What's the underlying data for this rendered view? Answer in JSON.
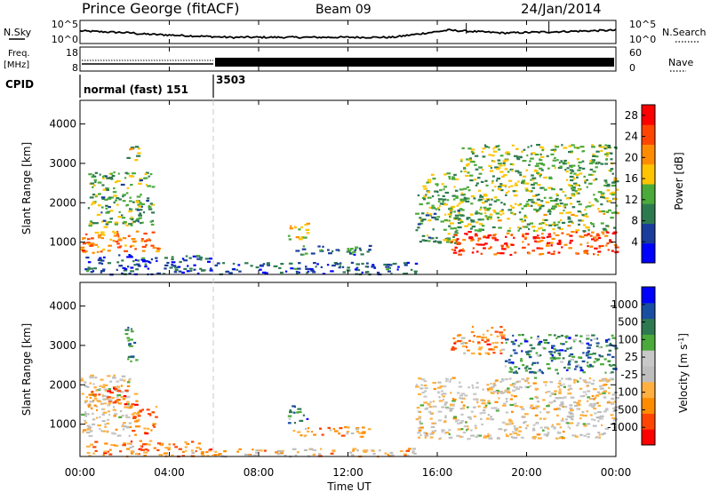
{
  "header": {
    "station": "Prince George (fitACF)",
    "beam": "Beam 09",
    "date": "24/Jan/2014"
  },
  "noise_panel": {
    "left_label": "N.Sky",
    "right_label": "N.Search",
    "left_ticks": [
      "10^5",
      "10^0"
    ],
    "right_ticks": [
      "10^5",
      "10^0"
    ]
  },
  "freq_panel": {
    "left_label_line1": "Freq.",
    "left_label_line2": "[MHz]",
    "left_ticks": [
      "18",
      "8"
    ],
    "right_label": "Nave",
    "right_ticks": [
      "60",
      "0"
    ]
  },
  "cpid_panel": {
    "label": "CPID",
    "programs": [
      {
        "name": "normal (fast) 151",
        "start_hour": 0
      },
      {
        "name": "3503",
        "start_hour": 6
      }
    ]
  },
  "xaxis": {
    "label": "Time UT",
    "ticks": [
      "00:00",
      "04:00",
      "08:00",
      "12:00",
      "16:00",
      "20:00",
      "00:00"
    ],
    "range_hours": [
      0,
      24
    ]
  },
  "colors": {
    "power_scale": [
      "#0000ff",
      "#1a3d9c",
      "#2e7a50",
      "#4aaa3a",
      "#ffc400",
      "#ff8c00",
      "#ff4500",
      "#ff0000"
    ],
    "velocity_scale": [
      "#ff0000",
      "#ff4500",
      "#ff8c00",
      "#ffb040",
      "#bebebe",
      "#c8c8c8",
      "#4aaa3a",
      "#2e7a50",
      "#1a4ea0",
      "#0000ff"
    ]
  },
  "chart_data": [
    {
      "type": "heatmap",
      "name": "power",
      "ylabel": "Slant Range [km]",
      "yticks": [
        "1000",
        "2000",
        "3000",
        "4000"
      ],
      "ylim": [
        180,
        4600
      ],
      "colorbar_label": "Power [dB]",
      "colorbar_ticks": [
        "4",
        "8",
        "12",
        "16",
        "20",
        "24",
        "28"
      ],
      "colorbar_range": [
        0,
        30
      ],
      "regions": [
        {
          "t": [
            0.0,
            3.5
          ],
          "r": [
            750,
            1300
          ],
          "value": 22
        },
        {
          "t": [
            0.3,
            3.3
          ],
          "r": [
            1400,
            2800
          ],
          "value": 12
        },
        {
          "t": [
            2.0,
            2.6
          ],
          "r": [
            3100,
            3500
          ],
          "value": 14
        },
        {
          "t": [
            0.2,
            6.0
          ],
          "r": [
            200,
            700
          ],
          "value": 5
        },
        {
          "t": [
            6.0,
            15.0
          ],
          "r": [
            200,
            500
          ],
          "value": 5
        },
        {
          "t": [
            9.3,
            10.2
          ],
          "r": [
            1050,
            1500
          ],
          "value": 18
        },
        {
          "t": [
            9.5,
            13.0
          ],
          "r": [
            700,
            950
          ],
          "value": 8
        },
        {
          "t": [
            15.0,
            17.0
          ],
          "r": [
            1000,
            2800
          ],
          "value": 12
        },
        {
          "t": [
            16.5,
            24.0
          ],
          "r": [
            700,
            1300
          ],
          "value": 26
        },
        {
          "t": [
            16.5,
            24.0
          ],
          "r": [
            1300,
            2000
          ],
          "value": 14
        },
        {
          "t": [
            17.0,
            24.0
          ],
          "r": [
            2000,
            3500
          ],
          "value": 13
        }
      ]
    },
    {
      "type": "heatmap",
      "name": "velocity",
      "ylabel": "Slant Range [km]",
      "yticks": [
        "1000",
        "2000",
        "3000",
        "4000"
      ],
      "ylim": [
        180,
        4600
      ],
      "colorbar_label": "Velocity [m s^-1]",
      "colorbar_ticks": [
        "1000",
        "500",
        "100",
        "25",
        "-25",
        "-100",
        "-500",
        "-1000"
      ],
      "colorbar_range": [
        -1000,
        1000
      ],
      "regions": [
        {
          "t": [
            0.0,
            2.2
          ],
          "r": [
            700,
            2300
          ],
          "value": 0
        },
        {
          "t": [
            2.2,
            3.4
          ],
          "r": [
            750,
            1500
          ],
          "value": -300
        },
        {
          "t": [
            0.3,
            2.5
          ],
          "r": [
            1500,
            2000
          ],
          "value": -150
        },
        {
          "t": [
            2.0,
            2.5
          ],
          "r": [
            2600,
            3500
          ],
          "value": 200
        },
        {
          "t": [
            0.2,
            6.0
          ],
          "r": [
            200,
            600
          ],
          "value": -100
        },
        {
          "t": [
            6.0,
            15.0
          ],
          "r": [
            200,
            400
          ],
          "value": -60
        },
        {
          "t": [
            9.3,
            10.2
          ],
          "r": [
            1050,
            1500
          ],
          "value": 300
        },
        {
          "t": [
            9.5,
            13.0
          ],
          "r": [
            700,
            950
          ],
          "value": -120
        },
        {
          "t": [
            15.0,
            24.0
          ],
          "r": [
            650,
            2200
          ],
          "value": 0
        },
        {
          "t": [
            16.6,
            19.0
          ],
          "r": [
            2800,
            3500
          ],
          "value": -300
        },
        {
          "t": [
            19.0,
            24.0
          ],
          "r": [
            2300,
            3300
          ],
          "value": 150
        }
      ]
    }
  ]
}
